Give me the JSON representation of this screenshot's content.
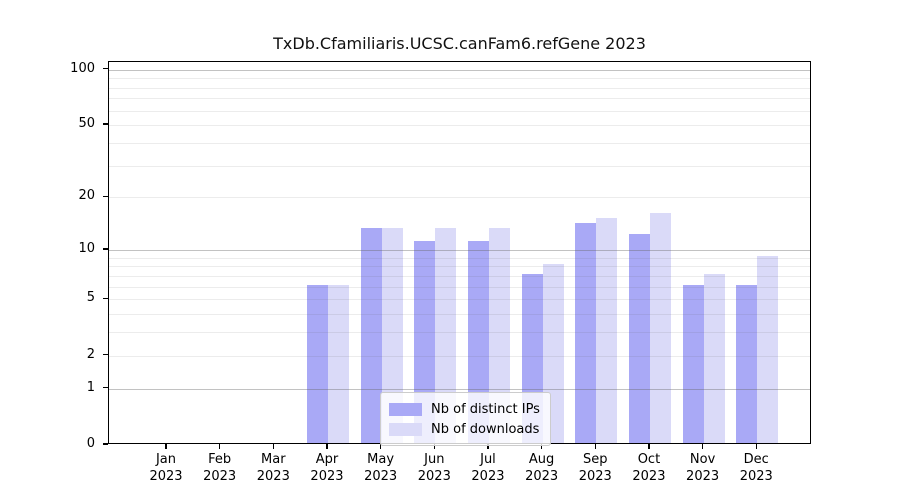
{
  "title": "TxDb.Cfamiliaris.UCSC.canFam6.refGene 2023",
  "chart_data": {
    "type": "bar",
    "title": "TxDb.Cfamiliaris.UCSC.canFam6.refGene 2023",
    "categories": [
      "Jan",
      "Feb",
      "Mar",
      "Apr",
      "May",
      "Jun",
      "Jul",
      "Aug",
      "Sep",
      "Oct",
      "Nov",
      "Dec"
    ],
    "year_label": "2023",
    "series": [
      {
        "name": "Nb of distinct IPs",
        "color": "#a9a9f6",
        "values": [
          0,
          0,
          0,
          6,
          13,
          11,
          11,
          7,
          14,
          12,
          6,
          6
        ]
      },
      {
        "name": "Nb of downloads",
        "color": "#dadaf8",
        "values": [
          0,
          0,
          0,
          6,
          13,
          13,
          13,
          8,
          15,
          16,
          7,
          9
        ]
      }
    ],
    "xlabel": "",
    "ylabel": "",
    "scale": "log1p",
    "yticks": [
      0,
      1,
      2,
      5,
      10,
      20,
      50,
      100
    ],
    "ygrid_major": [
      1,
      10,
      100
    ],
    "ygrid_minor": [
      2,
      3,
      4,
      5,
      6,
      7,
      8,
      9,
      20,
      30,
      40,
      50,
      60,
      70,
      80,
      90
    ],
    "ylim": [
      0,
      110
    ],
    "grid": true,
    "legend_position": "lower center"
  }
}
